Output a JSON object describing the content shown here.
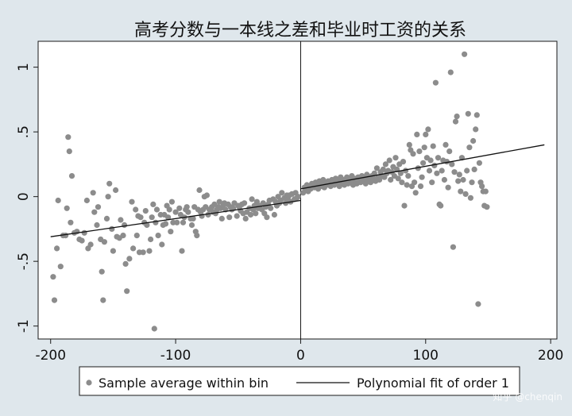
{
  "chart_data": {
    "type": "scatter",
    "title": "高考分数与一本线之差和毕业时工资的关系",
    "xlabel": "",
    "ylabel": "",
    "xlim": [
      -210,
      205
    ],
    "ylim": [
      -1.1,
      1.2
    ],
    "x_ticks": [
      -200,
      -100,
      0,
      100,
      200
    ],
    "x_tick_labels": [
      "-200",
      "-100",
      "0",
      "100",
      "200"
    ],
    "y_ticks": [
      -1,
      -0.5,
      0,
      0.5,
      1
    ],
    "y_tick_labels": [
      "-1",
      "-.5",
      "0",
      ".5",
      "1"
    ],
    "cutoff_x": 0,
    "grid": false,
    "legend_position": "bottom",
    "series": [
      {
        "name": "Sample average within bin",
        "kind": "scatter",
        "color": "#8c8c8c",
        "points": [
          [
            -198,
            -0.62
          ],
          [
            -197,
            -0.8
          ],
          [
            -195,
            -0.4
          ],
          [
            -194,
            -0.03
          ],
          [
            -192,
            -0.54
          ],
          [
            -190,
            -0.3
          ],
          [
            -188,
            -0.3
          ],
          [
            -187,
            -0.09
          ],
          [
            -186,
            0.46
          ],
          [
            -185,
            0.35
          ],
          [
            -184,
            -0.2
          ],
          [
            -183,
            0.16
          ],
          [
            -181,
            -0.28
          ],
          [
            -179,
            -0.27
          ],
          [
            -177,
            -0.33
          ],
          [
            -175,
            -0.34
          ],
          [
            -173,
            -0.28
          ],
          [
            -171,
            -0.03
          ],
          [
            -170,
            -0.4
          ],
          [
            -168,
            -0.37
          ],
          [
            -166,
            0.03
          ],
          [
            -165,
            -0.12
          ],
          [
            -163,
            -0.22
          ],
          [
            -162,
            -0.08
          ],
          [
            -160,
            -0.33
          ],
          [
            -159,
            -0.58
          ],
          [
            -158,
            -0.8
          ],
          [
            -157,
            -0.35
          ],
          [
            -155,
            -0.17
          ],
          [
            -154,
            0.0
          ],
          [
            -153,
            0.1
          ],
          [
            -151,
            -0.25
          ],
          [
            -150,
            -0.42
          ],
          [
            -148,
            0.05
          ],
          [
            -147,
            -0.31
          ],
          [
            -145,
            -0.32
          ],
          [
            -144,
            -0.18
          ],
          [
            -142,
            -0.3
          ],
          [
            -141,
            -0.22
          ],
          [
            -140,
            -0.52
          ],
          [
            -139,
            -0.73
          ],
          [
            -137,
            -0.48
          ],
          [
            -135,
            -0.04
          ],
          [
            -134,
            -0.4
          ],
          [
            -132,
            -0.1
          ],
          [
            -131,
            -0.3
          ],
          [
            -130,
            -0.15
          ],
          [
            -129,
            -0.43
          ],
          [
            -128,
            -0.16
          ],
          [
            -126,
            -0.43
          ],
          [
            -125,
            -0.2
          ],
          [
            -124,
            -0.11
          ],
          [
            -123,
            -0.22
          ],
          [
            -121,
            -0.42
          ],
          [
            -120,
            -0.33
          ],
          [
            -119,
            -0.16
          ],
          [
            -118,
            -0.06
          ],
          [
            -117,
            -1.02
          ],
          [
            -116,
            -0.2
          ],
          [
            -115,
            -0.1
          ],
          [
            -114,
            -0.3
          ],
          [
            -112,
            -0.14
          ],
          [
            -111,
            -0.37
          ],
          [
            -110,
            -0.22
          ],
          [
            -109,
            -0.14
          ],
          [
            -108,
            -0.21
          ],
          [
            -107,
            -0.07
          ],
          [
            -106,
            -0.16
          ],
          [
            -105,
            -0.1
          ],
          [
            -104,
            -0.27
          ],
          [
            -103,
            -0.04
          ],
          [
            -102,
            -0.2
          ],
          [
            -100,
            -0.12
          ],
          [
            -99,
            -0.2
          ],
          [
            -97,
            -0.09
          ],
          [
            -96,
            -0.14
          ],
          [
            -95,
            -0.42
          ],
          [
            -94,
            -0.2
          ],
          [
            -93,
            -0.16
          ],
          [
            -92,
            -0.1
          ],
          [
            -91,
            -0.08
          ],
          [
            -90,
            -0.12
          ],
          [
            -88,
            -0.17
          ],
          [
            -87,
            -0.22
          ],
          [
            -86,
            -0.17
          ],
          [
            -85,
            -0.08
          ],
          [
            -84,
            -0.27
          ],
          [
            -83,
            -0.3
          ],
          [
            -82,
            -0.1
          ],
          [
            -81,
            0.05
          ],
          [
            -80,
            -0.12
          ],
          [
            -79,
            -0.15
          ],
          [
            -78,
            -0.1
          ],
          [
            -77,
            0.0
          ],
          [
            -76,
            -0.08
          ],
          [
            -75,
            0.01
          ],
          [
            -74,
            -0.14
          ],
          [
            -73,
            -0.1
          ],
          [
            -71,
            -0.08
          ],
          [
            -70,
            -0.12
          ],
          [
            -69,
            -0.06
          ],
          [
            -68,
            -0.13
          ],
          [
            -67,
            -0.1
          ],
          [
            -66,
            -0.08
          ],
          [
            -65,
            -0.04
          ],
          [
            -64,
            -0.09
          ],
          [
            -63,
            -0.17
          ],
          [
            -62,
            -0.07
          ],
          [
            -61,
            -0.05
          ],
          [
            -60,
            -0.1
          ],
          [
            -58,
            -0.06
          ],
          [
            -57,
            -0.16
          ],
          [
            -56,
            -0.08
          ],
          [
            -55,
            -0.1
          ],
          [
            -54,
            -0.09
          ],
          [
            -53,
            -0.05
          ],
          [
            -51,
            -0.15
          ],
          [
            -50,
            -0.07
          ],
          [
            -49,
            -0.08
          ],
          [
            -48,
            -0.11
          ],
          [
            -47,
            -0.06
          ],
          [
            -46,
            -0.13
          ],
          [
            -45,
            -0.05
          ],
          [
            -44,
            -0.17
          ],
          [
            -43,
            -0.12
          ],
          [
            -41,
            -0.09
          ],
          [
            -40,
            -0.14
          ],
          [
            -39,
            -0.02
          ],
          [
            -38,
            -0.1
          ],
          [
            -37,
            -0.07
          ],
          [
            -36,
            -0.13
          ],
          [
            -35,
            -0.04
          ],
          [
            -34,
            -0.09
          ],
          [
            -33,
            -0.07
          ],
          [
            -31,
            -0.1
          ],
          [
            -30,
            -0.05
          ],
          [
            -29,
            -0.13
          ],
          [
            -28,
            -0.08
          ],
          [
            -27,
            -0.16
          ],
          [
            -26,
            -0.06
          ],
          [
            -25,
            -0.03
          ],
          [
            -24,
            -0.09
          ],
          [
            -22,
            -0.02
          ],
          [
            -21,
            -0.14
          ],
          [
            -20,
            -0.04
          ],
          [
            -19,
            -0.07
          ],
          [
            -18,
            0.0
          ],
          [
            -17,
            -0.05
          ],
          [
            -16,
            -0.03
          ],
          [
            -15,
            0.03
          ],
          [
            -13,
            -0.01
          ],
          [
            -12,
            -0.05
          ],
          [
            -11,
            0.01
          ],
          [
            -10,
            -0.02
          ],
          [
            -9,
            0.01
          ],
          [
            -8,
            -0.04
          ],
          [
            -7,
            0.02
          ],
          [
            -5,
            -0.02
          ],
          [
            -4,
            0.03
          ],
          [
            -3,
            -0.01
          ],
          [
            -2,
            0.0
          ],
          [
            2,
            0.03
          ],
          [
            3,
            0.07
          ],
          [
            4,
            0.05
          ],
          [
            5,
            0.09
          ],
          [
            6,
            0.04
          ],
          [
            7,
            0.08
          ],
          [
            8,
            0.06
          ],
          [
            9,
            0.1
          ],
          [
            10,
            0.08
          ],
          [
            11,
            0.07
          ],
          [
            12,
            0.11
          ],
          [
            13,
            0.09
          ],
          [
            14,
            0.06
          ],
          [
            15,
            0.12
          ],
          [
            16,
            0.1
          ],
          [
            17,
            0.08
          ],
          [
            18,
            0.13
          ],
          [
            19,
            0.07
          ],
          [
            20,
            0.11
          ],
          [
            21,
            0.09
          ],
          [
            22,
            0.12
          ],
          [
            23,
            0.1
          ],
          [
            24,
            0.08
          ],
          [
            25,
            0.13
          ],
          [
            26,
            0.11
          ],
          [
            27,
            0.09
          ],
          [
            28,
            0.14
          ],
          [
            29,
            0.1
          ],
          [
            30,
            0.12
          ],
          [
            31,
            0.08
          ],
          [
            32,
            0.15
          ],
          [
            33,
            0.11
          ],
          [
            34,
            0.13
          ],
          [
            35,
            0.09
          ],
          [
            36,
            0.12
          ],
          [
            37,
            0.15
          ],
          [
            38,
            0.1
          ],
          [
            39,
            0.13
          ],
          [
            40,
            0.11
          ],
          [
            41,
            0.16
          ],
          [
            42,
            0.09
          ],
          [
            43,
            0.14
          ],
          [
            44,
            0.12
          ],
          [
            45,
            0.1
          ],
          [
            46,
            0.15
          ],
          [
            47,
            0.13
          ],
          [
            48,
            0.11
          ],
          [
            49,
            0.16
          ],
          [
            50,
            0.12
          ],
          [
            51,
            0.14
          ],
          [
            52,
            0.1
          ],
          [
            53,
            0.17
          ],
          [
            54,
            0.13
          ],
          [
            55,
            0.15
          ],
          [
            56,
            0.11
          ],
          [
            57,
            0.16
          ],
          [
            58,
            0.14
          ],
          [
            59,
            0.18
          ],
          [
            60,
            0.12
          ],
          [
            61,
            0.22
          ],
          [
            62,
            0.15
          ],
          [
            63,
            0.13
          ],
          [
            64,
            0.19
          ],
          [
            65,
            0.16
          ],
          [
            66,
            0.21
          ],
          [
            67,
            0.15
          ],
          [
            68,
            0.25
          ],
          [
            69,
            0.18
          ],
          [
            70,
            0.2
          ],
          [
            71,
            0.28
          ],
          [
            72,
            0.13
          ],
          [
            73,
            0.19
          ],
          [
            74,
            0.23
          ],
          [
            75,
            0.16
          ],
          [
            76,
            0.3
          ],
          [
            77,
            0.21
          ],
          [
            78,
            0.14
          ],
          [
            79,
            0.25
          ],
          [
            80,
            0.18
          ],
          [
            81,
            0.11
          ],
          [
            82,
            0.27
          ],
          [
            83,
            -0.07
          ],
          [
            84,
            0.2
          ],
          [
            85,
            0.09
          ],
          [
            86,
            0.16
          ],
          [
            87,
            0.4
          ],
          [
            88,
            0.36
          ],
          [
            89,
            0.08
          ],
          [
            90,
            0.33
          ],
          [
            91,
            0.11
          ],
          [
            92,
            0.03
          ],
          [
            93,
            0.48
          ],
          [
            94,
            0.22
          ],
          [
            95,
            0.35
          ],
          [
            96,
            0.08
          ],
          [
            97,
            0.15
          ],
          [
            98,
            0.26
          ],
          [
            99,
            0.38
          ],
          [
            100,
            0.48
          ],
          [
            101,
            0.3
          ],
          [
            102,
            0.52
          ],
          [
            103,
            0.2
          ],
          [
            104,
            0.28
          ],
          [
            105,
            0.11
          ],
          [
            106,
            0.39
          ],
          [
            107,
            0.24
          ],
          [
            108,
            0.88
          ],
          [
            109,
            0.18
          ],
          [
            110,
            0.3
          ],
          [
            111,
            -0.06
          ],
          [
            112,
            -0.07
          ],
          [
            113,
            0.2
          ],
          [
            114,
            0.28
          ],
          [
            115,
            0.13
          ],
          [
            116,
            0.4
          ],
          [
            117,
            0.27
          ],
          [
            118,
            0.07
          ],
          [
            119,
            0.35
          ],
          [
            120,
            0.96
          ],
          [
            121,
            0.25
          ],
          [
            122,
            -0.39
          ],
          [
            123,
            0.19
          ],
          [
            124,
            0.58
          ],
          [
            125,
            0.62
          ],
          [
            126,
            0.12
          ],
          [
            127,
            0.17
          ],
          [
            128,
            0.04
          ],
          [
            129,
            0.3
          ],
          [
            130,
            0.13
          ],
          [
            131,
            1.1
          ],
          [
            132,
            0.02
          ],
          [
            133,
            0.2
          ],
          [
            134,
            0.64
          ],
          [
            135,
            0.38
          ],
          [
            136,
            -0.01
          ],
          [
            137,
            0.11
          ],
          [
            138,
            0.43
          ],
          [
            139,
            0.21
          ],
          [
            140,
            0.52
          ],
          [
            141,
            0.63
          ],
          [
            142,
            -0.83
          ],
          [
            143,
            0.26
          ],
          [
            144,
            0.11
          ],
          [
            145,
            0.08
          ],
          [
            146,
            0.04
          ],
          [
            147,
            -0.07
          ],
          [
            148,
            0.04
          ],
          [
            149,
            -0.08
          ]
        ]
      },
      {
        "name": "Polynomial fit of order 1",
        "kind": "line",
        "color": "#111111",
        "segments": [
          [
            [
              -200,
              -0.31
            ],
            [
              0,
              -0.03
            ]
          ],
          [
            [
              0,
              0.06
            ],
            [
              195,
              0.4
            ]
          ]
        ]
      }
    ]
  },
  "watermark": "知乎 @chenqin"
}
